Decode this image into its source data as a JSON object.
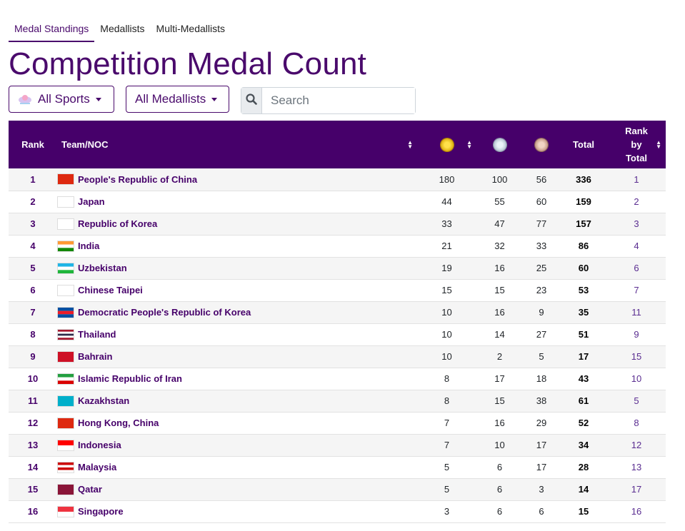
{
  "tabs": [
    "Medal Standings",
    "Medallists",
    "Multi-Medallists"
  ],
  "page_title": "Competition Medal Count",
  "filters": {
    "sports": "All Sports",
    "medallists": "All Medallists",
    "search_placeholder": "Search"
  },
  "headers": {
    "rank": "Rank",
    "team": "Team/NOC",
    "total": "Total",
    "rank_by_total": "Rank by Total"
  },
  "rows": [
    {
      "rank": "1",
      "team": "People's Republic of China",
      "gold": "180",
      "silver": "100",
      "bronze": "56",
      "total": "336",
      "rbt": "1",
      "flag": [
        "#de2910"
      ]
    },
    {
      "rank": "2",
      "team": "Japan",
      "gold": "44",
      "silver": "55",
      "bronze": "60",
      "total": "159",
      "rbt": "2",
      "flag": [
        "#ffffff"
      ]
    },
    {
      "rank": "3",
      "team": "Republic of Korea",
      "gold": "33",
      "silver": "47",
      "bronze": "77",
      "total": "157",
      "rbt": "3",
      "flag": [
        "#ffffff"
      ]
    },
    {
      "rank": "4",
      "team": "India",
      "gold": "21",
      "silver": "32",
      "bronze": "33",
      "total": "86",
      "rbt": "4",
      "flag": [
        "#ff9933",
        "#ffffff",
        "#138808"
      ]
    },
    {
      "rank": "5",
      "team": "Uzbekistan",
      "gold": "19",
      "silver": "16",
      "bronze": "25",
      "total": "60",
      "rbt": "6",
      "flag": [
        "#1eb5e6",
        "#ffffff",
        "#1eb53a"
      ]
    },
    {
      "rank": "6",
      "team": "Chinese Taipei",
      "gold": "15",
      "silver": "15",
      "bronze": "23",
      "total": "53",
      "rbt": "7",
      "flag": [
        "#ffffff"
      ]
    },
    {
      "rank": "7",
      "team": "Democratic People's Republic of Korea",
      "gold": "10",
      "silver": "16",
      "bronze": "9",
      "total": "35",
      "rbt": "11",
      "flag": [
        "#024fa2",
        "#ed1c27",
        "#024fa2"
      ]
    },
    {
      "rank": "8",
      "team": "Thailand",
      "gold": "10",
      "silver": "14",
      "bronze": "27",
      "total": "51",
      "rbt": "9",
      "flag": [
        "#a51931",
        "#ffffff",
        "#2d2a4a",
        "#ffffff",
        "#a51931"
      ]
    },
    {
      "rank": "9",
      "team": "Bahrain",
      "gold": "10",
      "silver": "2",
      "bronze": "5",
      "total": "17",
      "rbt": "15",
      "flag": [
        "#ce1126"
      ]
    },
    {
      "rank": "10",
      "team": "Islamic Republic of Iran",
      "gold": "8",
      "silver": "17",
      "bronze": "18",
      "total": "43",
      "rbt": "10",
      "flag": [
        "#239f40",
        "#ffffff",
        "#da0000"
      ]
    },
    {
      "rank": "11",
      "team": "Kazakhstan",
      "gold": "8",
      "silver": "15",
      "bronze": "38",
      "total": "61",
      "rbt": "5",
      "flag": [
        "#00afca"
      ]
    },
    {
      "rank": "12",
      "team": "Hong Kong, China",
      "gold": "7",
      "silver": "16",
      "bronze": "29",
      "total": "52",
      "rbt": "8",
      "flag": [
        "#de2910"
      ]
    },
    {
      "rank": "13",
      "team": "Indonesia",
      "gold": "7",
      "silver": "10",
      "bronze": "17",
      "total": "34",
      "rbt": "12",
      "flag": [
        "#ff0000",
        "#ffffff"
      ]
    },
    {
      "rank": "14",
      "team": "Malaysia",
      "gold": "5",
      "silver": "6",
      "bronze": "17",
      "total": "28",
      "rbt": "13",
      "flag": [
        "#cc0001",
        "#ffffff",
        "#cc0001",
        "#ffffff"
      ]
    },
    {
      "rank": "15",
      "team": "Qatar",
      "gold": "5",
      "silver": "6",
      "bronze": "3",
      "total": "14",
      "rbt": "17",
      "flag": [
        "#8a1538"
      ]
    },
    {
      "rank": "16",
      "team": "Singapore",
      "gold": "3",
      "silver": "6",
      "bronze": "6",
      "total": "15",
      "rbt": "16",
      "flag": [
        "#ef3340",
        "#ffffff"
      ]
    }
  ]
}
